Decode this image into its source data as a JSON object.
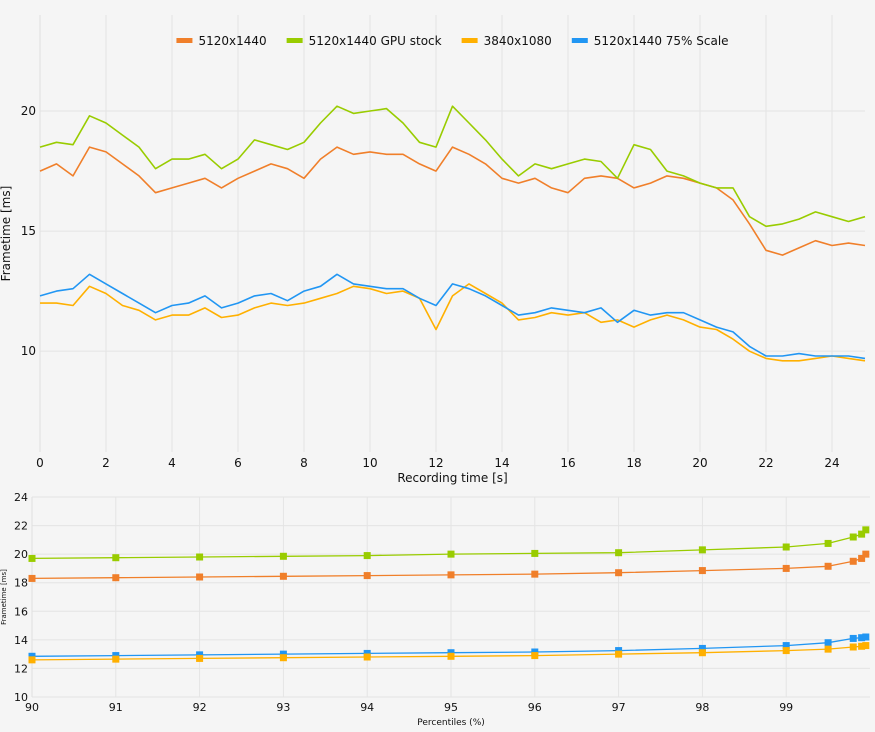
{
  "colors": {
    "5120x1440": "#f07f2a",
    "5120x1440 GPU stock": "#99cc00",
    "3840x1080": "#ffb000",
    "5120x1440 75% Scale": "#2196f3"
  },
  "chart_data": [
    {
      "type": "line",
      "xlabel": "Recording time [s]",
      "ylabel": "Frametime [ms]",
      "xlim": [
        0,
        25
      ],
      "ylim": [
        5.8,
        24
      ],
      "xticks": [
        0,
        2,
        4,
        6,
        8,
        10,
        12,
        14,
        16,
        18,
        20,
        22,
        24
      ],
      "yticks": [
        10,
        15,
        20
      ],
      "grid": true,
      "legend": "top-center",
      "x": [
        0,
        0.5,
        1,
        1.5,
        2,
        2.5,
        3,
        3.5,
        4,
        4.5,
        5,
        5.5,
        6,
        6.5,
        7,
        7.5,
        8,
        8.5,
        9,
        9.5,
        10,
        10.5,
        11,
        11.5,
        12,
        12.5,
        13,
        13.5,
        14,
        14.5,
        15,
        15.5,
        16,
        16.5,
        17,
        17.5,
        18,
        18.5,
        19,
        19.5,
        20,
        20.5,
        21,
        21.5,
        22,
        22.5,
        23,
        23.5,
        24,
        24.5,
        25
      ],
      "series": [
        {
          "name": "5120x1440",
          "values": [
            17.5,
            17.8,
            17.3,
            18.5,
            18.3,
            17.8,
            17.3,
            16.6,
            16.8,
            17.0,
            17.2,
            16.8,
            17.2,
            17.5,
            17.8,
            17.6,
            17.2,
            18.0,
            18.5,
            18.2,
            18.3,
            18.2,
            18.2,
            17.8,
            17.5,
            18.5,
            18.2,
            17.8,
            17.2,
            17.0,
            17.2,
            16.8,
            16.6,
            17.2,
            17.3,
            17.2,
            16.8,
            17.0,
            17.3,
            17.2,
            17.0,
            16.8,
            16.3,
            15.3,
            14.2,
            14.0,
            14.3,
            14.6,
            14.4,
            14.5,
            14.4
          ]
        },
        {
          "name": "5120x1440 GPU stock",
          "values": [
            18.5,
            18.7,
            18.6,
            19.8,
            19.5,
            19.0,
            18.5,
            17.6,
            18.0,
            18.0,
            18.2,
            17.6,
            18.0,
            18.8,
            18.6,
            18.4,
            18.7,
            19.5,
            20.2,
            19.9,
            20.0,
            20.1,
            19.5,
            18.7,
            18.5,
            20.2,
            19.5,
            18.8,
            18.0,
            17.3,
            17.8,
            17.6,
            17.8,
            18.0,
            17.9,
            17.2,
            18.6,
            18.4,
            17.5,
            17.3,
            17.0,
            16.8,
            16.8,
            15.6,
            15.2,
            15.3,
            15.5,
            15.8,
            15.6,
            15.4,
            15.6
          ]
        },
        {
          "name": "3840x1080",
          "values": [
            12.0,
            12.0,
            11.9,
            12.7,
            12.4,
            11.9,
            11.7,
            11.3,
            11.5,
            11.5,
            11.8,
            11.4,
            11.5,
            11.8,
            12.0,
            11.9,
            12.0,
            12.2,
            12.4,
            12.7,
            12.6,
            12.4,
            12.5,
            12.2,
            10.9,
            12.3,
            12.8,
            12.4,
            12.0,
            11.3,
            11.4,
            11.6,
            11.5,
            11.6,
            11.2,
            11.3,
            11.0,
            11.3,
            11.5,
            11.3,
            11.0,
            10.9,
            10.5,
            10.0,
            9.7,
            9.6,
            9.6,
            9.7,
            9.8,
            9.7,
            9.6
          ]
        },
        {
          "name": "5120x1440 75% Scale",
          "values": [
            12.3,
            12.5,
            12.6,
            13.2,
            12.8,
            12.4,
            12.0,
            11.6,
            11.9,
            12.0,
            12.3,
            11.8,
            12.0,
            12.3,
            12.4,
            12.1,
            12.5,
            12.7,
            13.2,
            12.8,
            12.7,
            12.6,
            12.6,
            12.2,
            11.9,
            12.8,
            12.6,
            12.3,
            11.9,
            11.5,
            11.6,
            11.8,
            11.7,
            11.6,
            11.8,
            11.2,
            11.7,
            11.5,
            11.6,
            11.6,
            11.3,
            11.0,
            10.8,
            10.2,
            9.8,
            9.8,
            9.9,
            9.8,
            9.8,
            9.8,
            9.7
          ]
        }
      ]
    },
    {
      "type": "line",
      "xlabel": "Percentiles (%)",
      "ylabel": "Frametime [ms]",
      "xlim": [
        90,
        100
      ],
      "ylim": [
        10,
        24
      ],
      "xticks": [
        90,
        91,
        92,
        93,
        94,
        95,
        96,
        97,
        98,
        99
      ],
      "yticks": [
        10,
        12,
        14,
        16,
        18,
        20,
        22,
        24
      ],
      "grid": true,
      "markers": "square",
      "x": [
        90,
        91,
        92,
        93,
        94,
        95,
        96,
        97,
        98,
        99,
        99.5,
        99.8,
        99.9,
        99.95
      ],
      "series": [
        {
          "name": "5120x1440 GPU stock",
          "values": [
            19.7,
            19.75,
            19.8,
            19.85,
            19.9,
            20.0,
            20.05,
            20.1,
            20.3,
            20.5,
            20.75,
            21.2,
            21.4,
            21.7
          ]
        },
        {
          "name": "5120x1440",
          "values": [
            18.3,
            18.35,
            18.4,
            18.45,
            18.5,
            18.55,
            18.6,
            18.7,
            18.85,
            19.0,
            19.15,
            19.5,
            19.7,
            20.0
          ]
        },
        {
          "name": "5120x1440 75% Scale",
          "values": [
            12.85,
            12.9,
            12.95,
            13.0,
            13.05,
            13.1,
            13.15,
            13.25,
            13.4,
            13.6,
            13.8,
            14.1,
            14.15,
            14.2
          ]
        },
        {
          "name": "3840x1080",
          "values": [
            12.6,
            12.65,
            12.7,
            12.75,
            12.8,
            12.85,
            12.9,
            13.0,
            13.1,
            13.25,
            13.35,
            13.5,
            13.55,
            13.6
          ]
        }
      ]
    }
  ]
}
